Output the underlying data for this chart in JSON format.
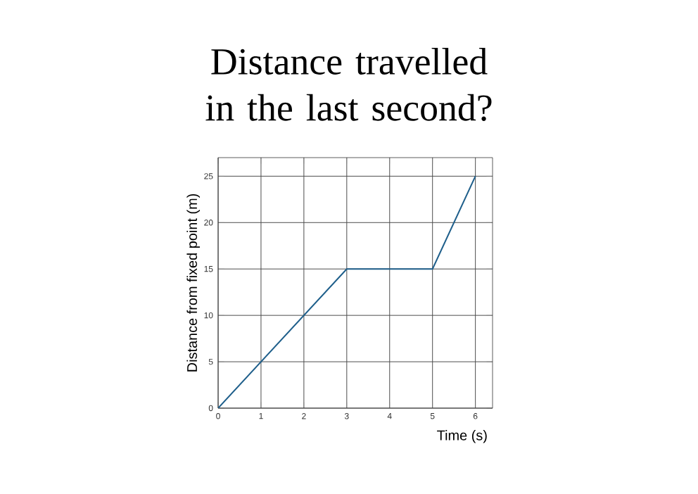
{
  "chart_data": {
    "type": "line",
    "title": "Distance travelled in the last second?",
    "xlabel": "Time (s)",
    "ylabel": "Distance from fixed point (m)",
    "x": [
      0,
      3,
      5,
      6
    ],
    "series": [
      {
        "color": "#1f5f8b",
        "values": [
          0,
          15,
          15,
          25
        ]
      }
    ],
    "xlim": [
      0,
      6.4
    ],
    "ylim": [
      0,
      27
    ],
    "xticks": [
      0,
      1,
      2,
      3,
      4,
      5,
      6
    ],
    "yticks": [
      0,
      5,
      10,
      15,
      20,
      25
    ],
    "grid": true,
    "marker": "none",
    "line_style": "solid"
  }
}
